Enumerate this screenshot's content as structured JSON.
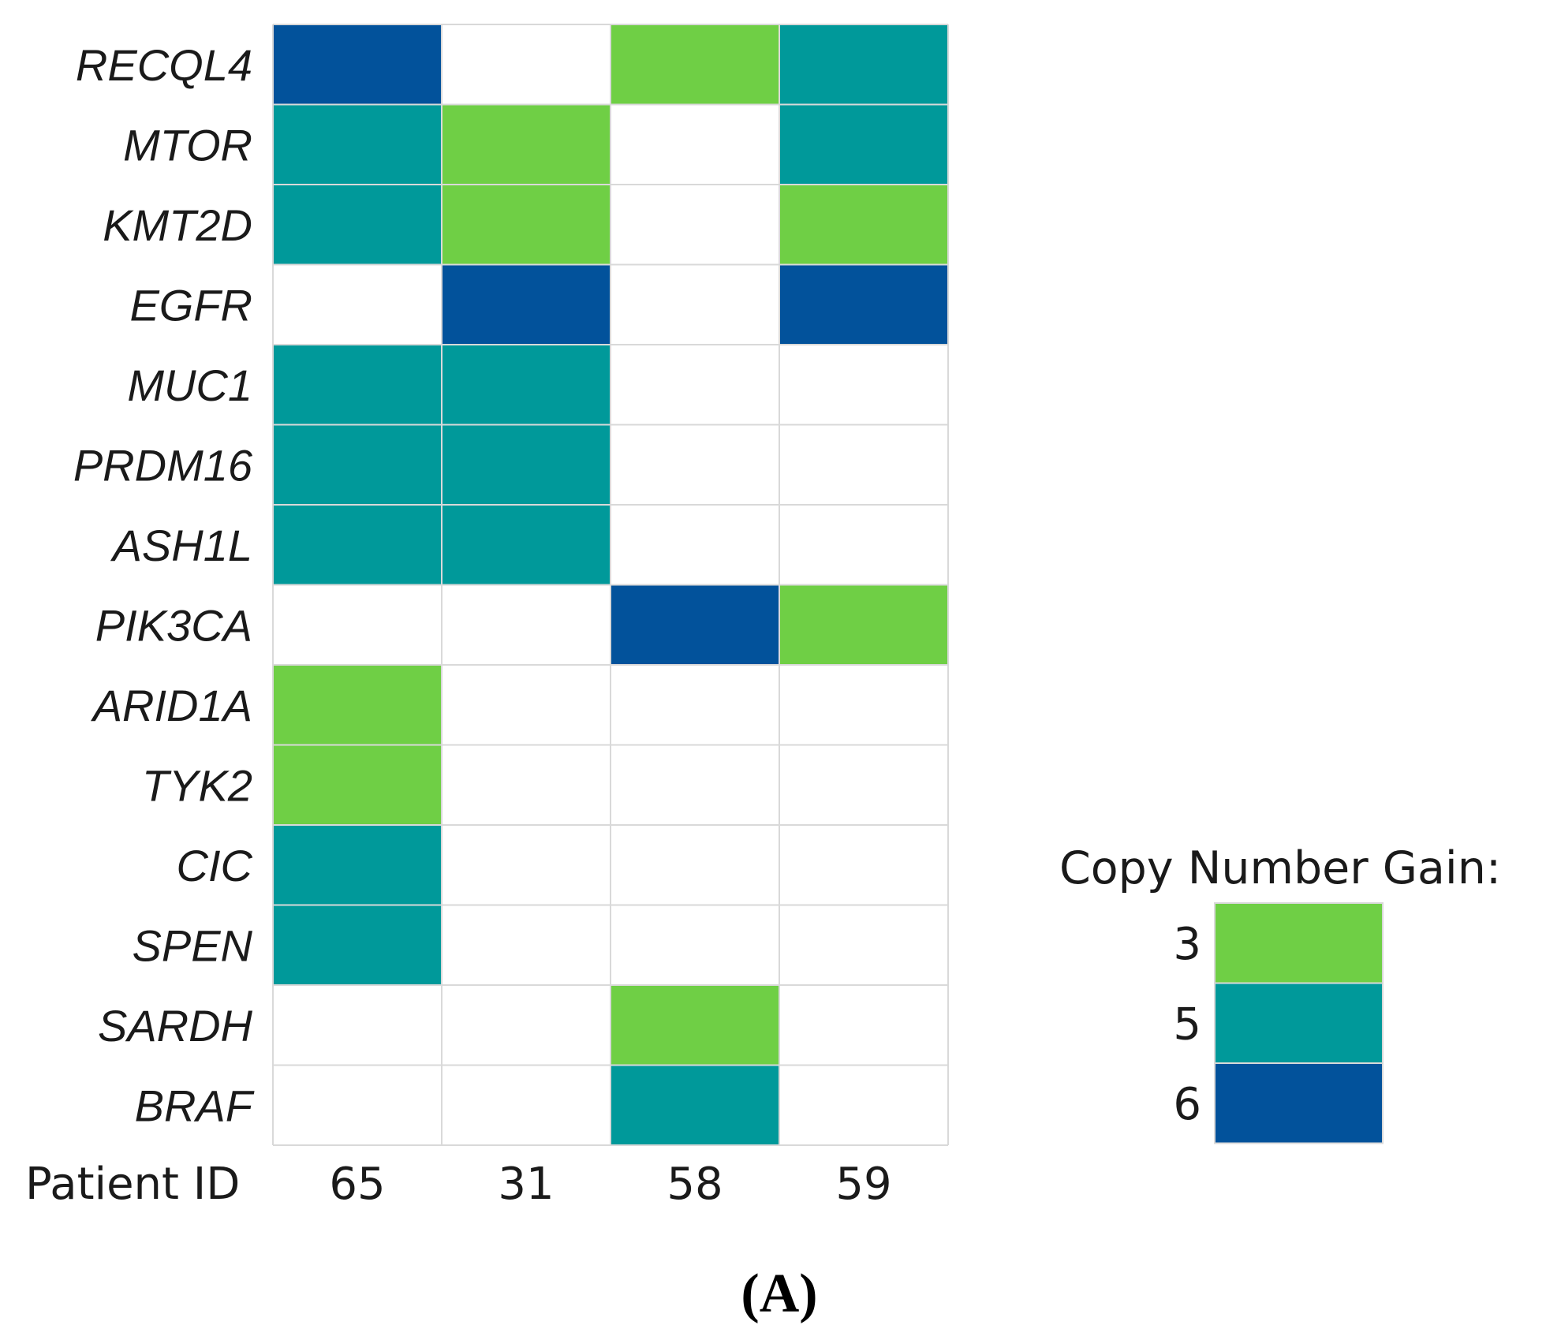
{
  "chart_data": {
    "type": "heatmap",
    "row_labels": [
      "RECQL4",
      "MTOR",
      "KMT2D",
      "EGFR",
      "MUC1",
      "PRDM16",
      "ASH1L",
      "PIK3CA",
      "ARID1A",
      "TYK2",
      "CIC",
      "SPEN",
      "SARDH",
      "BRAF"
    ],
    "column_axis_label": "Patient ID",
    "columns": [
      "65",
      "31",
      "58",
      "59"
    ],
    "values": [
      [
        6,
        null,
        3,
        5
      ],
      [
        5,
        3,
        null,
        5
      ],
      [
        5,
        3,
        null,
        3
      ],
      [
        null,
        6,
        null,
        6
      ],
      [
        5,
        5,
        null,
        null
      ],
      [
        5,
        5,
        null,
        null
      ],
      [
        5,
        5,
        null,
        null
      ],
      [
        null,
        null,
        6,
        3
      ],
      [
        3,
        null,
        null,
        null
      ],
      [
        3,
        null,
        null,
        null
      ],
      [
        5,
        null,
        null,
        null
      ],
      [
        5,
        null,
        null,
        null
      ],
      [
        null,
        null,
        3,
        null
      ],
      [
        null,
        null,
        5,
        null
      ]
    ],
    "legend": {
      "title": "Copy Number Gain:",
      "entries": [
        {
          "value": "3",
          "color": "#6fcf45"
        },
        {
          "value": "5",
          "color": "#00999a"
        },
        {
          "value": "6",
          "color": "#02529b"
        }
      ]
    },
    "grid": true,
    "legend_position": "right"
  },
  "panel_label": "(A)"
}
